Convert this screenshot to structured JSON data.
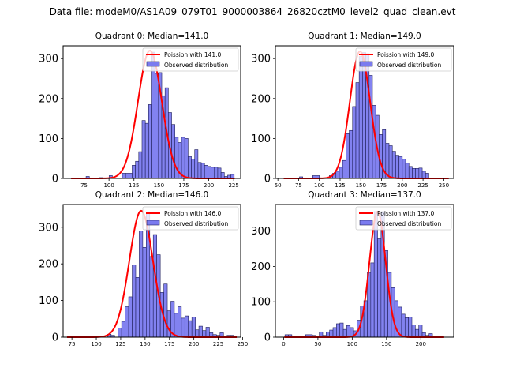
{
  "suptitle": "Data file: modeM0/AS1A09_079T01_9000003864_26820cztM0_level2_quad_clean.evt",
  "colors": {
    "bar_fill": "#7b7bef",
    "bar_edge": "#20205a",
    "line": "#ff0000"
  },
  "chart_data": [
    {
      "type": "bar",
      "title": "Quadrant 0: Median=141.0",
      "xlabel": "",
      "ylabel": "",
      "xlim": [
        54,
        232
      ],
      "ylim": [
        0,
        332
      ],
      "xticks": [
        75,
        100,
        125,
        150,
        175,
        200,
        225
      ],
      "yticks": [
        0,
        100,
        200,
        300
      ],
      "legend": {
        "position": "top-right",
        "entries": [
          "Poission with 141.0",
          "Observed distribution"
        ]
      },
      "poisson_mean": 141.0,
      "poisson_peak": 320,
      "poisson_range": [
        62,
        226
      ],
      "bin_width": 3.3,
      "bins_start": 77,
      "values": [
        5,
        0,
        0,
        0,
        2,
        0,
        0,
        7,
        0,
        0,
        0,
        13,
        13,
        13,
        33,
        43,
        67,
        145,
        138,
        185,
        316,
        263,
        265,
        207,
        227,
        165,
        135,
        103,
        90,
        103,
        100,
        55,
        48,
        72,
        40,
        38,
        33,
        30,
        28,
        28,
        26,
        15,
        5,
        8,
        10,
        0,
        0
      ]
    },
    {
      "type": "bar",
      "title": "Quadrant 1: Median=149.0",
      "xlabel": "",
      "ylabel": "",
      "xlim": [
        47,
        262
      ],
      "ylim": [
        0,
        332
      ],
      "xticks": [
        50,
        75,
        100,
        125,
        150,
        175,
        200,
        225,
        250
      ],
      "yticks": [
        0,
        100,
        200,
        300
      ],
      "legend": {
        "position": "top-right",
        "entries": [
          "Poission with 149.0",
          "Observed distribution"
        ]
      },
      "poisson_mean": 149.0,
      "poisson_peak": 318,
      "poisson_range": [
        57,
        256
      ],
      "bin_width": 4.0,
      "bins_start": 76,
      "values": [
        4,
        0,
        0,
        0,
        7,
        7,
        0,
        0,
        0,
        7,
        13,
        18,
        28,
        45,
        112,
        120,
        180,
        240,
        305,
        315,
        312,
        258,
        183,
        158,
        110,
        122,
        88,
        82,
        68,
        58,
        55,
        48,
        38,
        30,
        25,
        25,
        26,
        18,
        13,
        0,
        0
      ]
    },
    {
      "type": "bar",
      "title": "Quadrant 2: Median=146.0",
      "xlabel": "",
      "ylabel": "",
      "xlim": [
        66,
        248
      ],
      "ylim": [
        0,
        362
      ],
      "xticks": [
        75,
        100,
        125,
        150,
        175,
        200,
        225,
        250
      ],
      "yticks": [
        0,
        100,
        200,
        300
      ],
      "legend": {
        "position": "top-right",
        "entries": [
          "Poission with 146.0",
          "Observed distribution"
        ]
      },
      "poisson_mean": 146.0,
      "poisson_peak": 345,
      "poisson_range": [
        70,
        244
      ],
      "bin_width": 3.6,
      "bins_start": 72,
      "values": [
        3,
        3,
        0,
        0,
        0,
        3,
        0,
        0,
        0,
        0,
        0,
        8,
        5,
        0,
        25,
        43,
        83,
        110,
        197,
        163,
        290,
        245,
        342,
        220,
        280,
        225,
        122,
        145,
        72,
        98,
        65,
        83,
        52,
        58,
        45,
        55,
        20,
        30,
        18,
        27,
        12,
        7,
        5,
        12,
        0,
        5,
        5,
        0
      ]
    },
    {
      "type": "bar",
      "title": "Quadrant 3: Median=137.0",
      "xlabel": "",
      "ylabel": "",
      "xlim": [
        -12,
        248
      ],
      "ylim": [
        0,
        375
      ],
      "xticks": [
        0,
        50,
        100,
        150,
        200
      ],
      "yticks": [
        0,
        100,
        200,
        300
      ],
      "legend": {
        "position": "top-right",
        "entries": [
          "Poission with 137.0",
          "Observed distribution"
        ]
      },
      "poisson_mean": 137.0,
      "poisson_peak": 355,
      "poisson_range": [
        1,
        234
      ],
      "bin_width": 5.0,
      "bins_start": 2,
      "values": [
        7,
        7,
        3,
        0,
        3,
        0,
        7,
        7,
        5,
        3,
        15,
        5,
        15,
        20,
        27,
        38,
        40,
        22,
        33,
        27,
        18,
        48,
        88,
        103,
        183,
        210,
        355,
        278,
        355,
        245,
        183,
        140,
        103,
        85,
        65,
        55,
        57,
        35,
        22,
        35,
        13,
        5,
        10,
        2
      ]
    }
  ]
}
